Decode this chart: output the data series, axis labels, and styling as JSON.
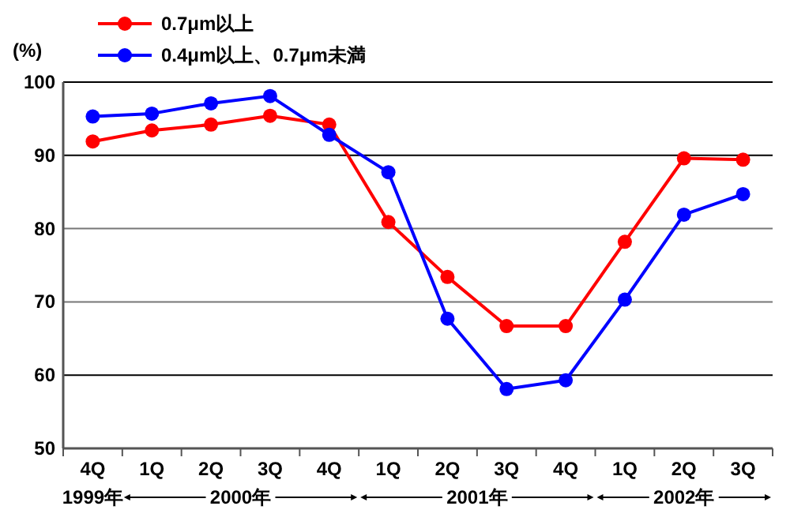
{
  "chart_data": {
    "type": "line",
    "ylabel": "(%)",
    "categories": [
      "4Q",
      "1Q",
      "2Q",
      "3Q",
      "4Q",
      "1Q",
      "2Q",
      "3Q",
      "4Q",
      "1Q",
      "2Q",
      "3Q"
    ],
    "series": [
      {
        "name": "0.7μm以上",
        "color": "#ff0000",
        "values": [
          91.9,
          93.4,
          94.2,
          95.4,
          94.2,
          80.9,
          73.4,
          66.7,
          66.7,
          78.2,
          89.6,
          89.4
        ]
      },
      {
        "name": "0.4μm以上、0.7μm未満",
        "color": "#0000ff",
        "values": [
          95.3,
          95.7,
          97.1,
          98.1,
          92.8,
          87.7,
          67.7,
          58.1,
          59.3,
          70.3,
          81.9,
          84.7
        ]
      }
    ],
    "ylim": [
      50,
      100
    ],
    "yticks": [
      50,
      60,
      70,
      80,
      90,
      100
    ],
    "grid": "y",
    "legend": "top",
    "marker": "circle",
    "line_style": "solid",
    "annotations": [
      "1999年",
      "2000年",
      "2001年",
      "2002年"
    ]
  }
}
